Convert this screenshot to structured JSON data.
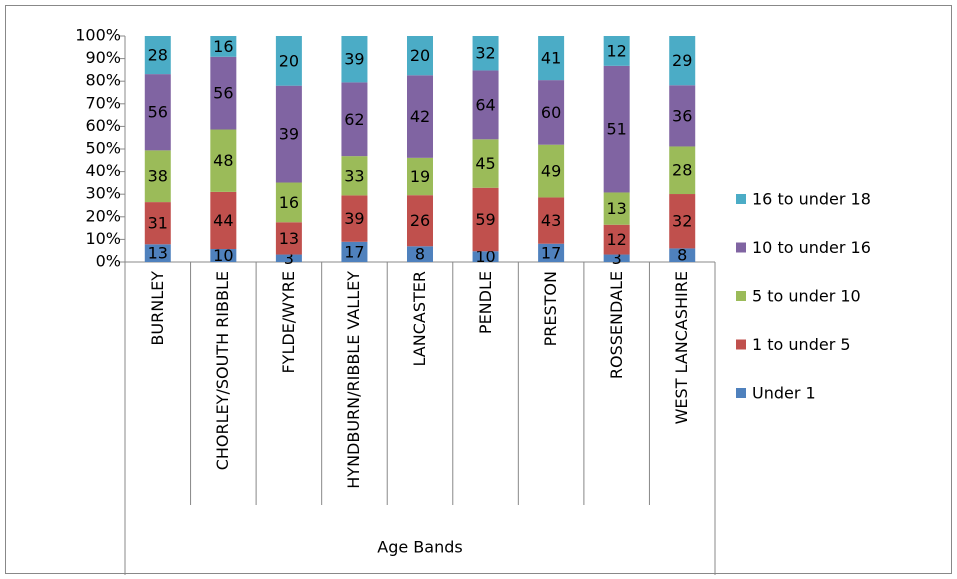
{
  "chart_data": {
    "type": "bar",
    "stacking": "percent",
    "x_label": "Age Bands",
    "categories": [
      "BURNLEY",
      "CHORLEY/SOUTH RIBBLE",
      "FYLDE/WYRE",
      "HYNDBURN/RIBBLE VALLEY",
      "LANCASTER",
      "PENDLE",
      "PRESTON",
      "ROSSENDALE",
      "WEST LANCASHIRE"
    ],
    "series": [
      {
        "name": "Under 1",
        "color": "#4f81bd",
        "values": [
          13,
          10,
          3,
          17,
          8,
          10,
          17,
          3,
          8
        ]
      },
      {
        "name": "1 to under 5",
        "color": "#c0504d",
        "values": [
          31,
          44,
          13,
          39,
          26,
          59,
          43,
          12,
          32
        ]
      },
      {
        "name": "5 to under 10",
        "color": "#9bbb59",
        "values": [
          38,
          48,
          16,
          33,
          19,
          45,
          49,
          13,
          28
        ]
      },
      {
        "name": "10 to under 16",
        "color": "#8064a2",
        "values": [
          56,
          56,
          39,
          62,
          42,
          64,
          60,
          51,
          36
        ]
      },
      {
        "name": "16 to under 18",
        "color": "#4bacc6",
        "values": [
          28,
          16,
          20,
          39,
          20,
          32,
          41,
          12,
          29
        ]
      }
    ],
    "ylim": [
      0,
      100
    ],
    "yticks": [
      {
        "value": 0,
        "label": "0%"
      },
      {
        "value": 10,
        "label": "10%"
      },
      {
        "value": 20,
        "label": "20%"
      },
      {
        "value": 30,
        "label": "30%"
      },
      {
        "value": 40,
        "label": "40%"
      },
      {
        "value": 50,
        "label": "50%"
      },
      {
        "value": 60,
        "label": "60%"
      },
      {
        "value": 70,
        "label": "70%"
      },
      {
        "value": 80,
        "label": "80%"
      },
      {
        "value": 90,
        "label": "90%"
      },
      {
        "value": 100,
        "label": "100%"
      }
    ],
    "legend": "right"
  }
}
